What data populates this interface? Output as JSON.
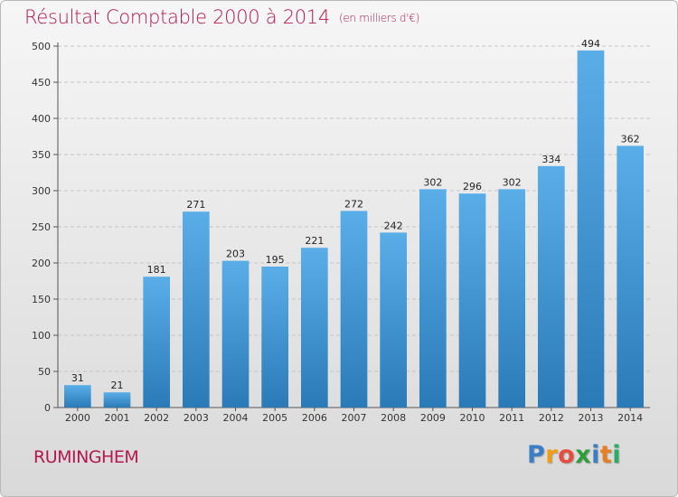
{
  "title": "Résultat Comptable 2000 à 2014",
  "subtitle": "(en milliers d'€)",
  "town": "RUMINGHEM",
  "logo": {
    "letters": [
      "P",
      "r",
      "o",
      "x",
      "i",
      "t",
      "i"
    ],
    "colors": [
      "#3a7fc6",
      "#f39c12",
      "#e74c3c",
      "#2e9e3a",
      "#3a7fc6",
      "#e67e22",
      "#27ae60"
    ]
  },
  "colors": {
    "accent": "#b5174f",
    "bar_light": "#5aaee8",
    "bar_dark": "#2a7ab8"
  },
  "chart_data": {
    "type": "bar",
    "title": "Résultat Comptable 2000 à 2014",
    "subtitle": "(en milliers d'€)",
    "categories": [
      "2000",
      "2001",
      "2002",
      "2003",
      "2004",
      "2005",
      "2006",
      "2007",
      "2008",
      "2009",
      "2010",
      "2011",
      "2012",
      "2013",
      "2014"
    ],
    "values": [
      31,
      21,
      181,
      271,
      203,
      195,
      221,
      272,
      242,
      302,
      296,
      302,
      334,
      494,
      362
    ],
    "ylim": [
      0,
      500
    ],
    "yticks": [
      0,
      50,
      100,
      150,
      200,
      250,
      300,
      350,
      400,
      450,
      500
    ],
    "grid": true,
    "xlabel": "",
    "ylabel": ""
  }
}
